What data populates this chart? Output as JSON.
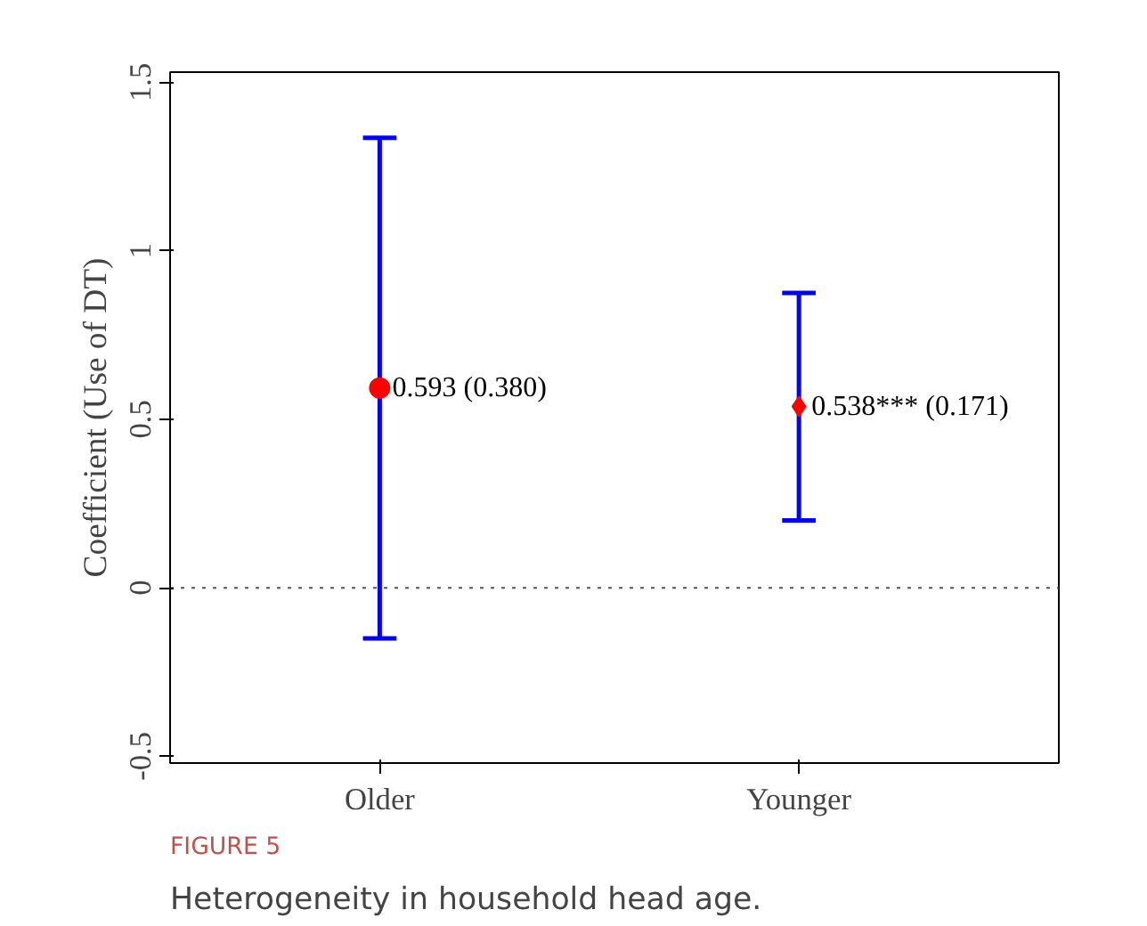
{
  "chart_data": {
    "type": "scatter",
    "title": "FIGURE 5",
    "subtitle": "Heterogeneity in household head age.",
    "ylabel": "Coefficient (Use of DT)",
    "categories": [
      "Older",
      "Younger"
    ],
    "series": [
      {
        "color": "#ff0000",
        "marker": "circle",
        "values": [
          0.593,
          null
        ],
        "errors": [
          [
            -0.15,
            1.335
          ],
          null
        ],
        "value_labels": [
          "0.593 (0.380)",
          null
        ]
      },
      {
        "color": "#ff0000",
        "marker": "diamond",
        "values": [
          null,
          0.538
        ],
        "errors": [
          null,
          [
            0.2,
            0.875
          ]
        ],
        "value_labels": [
          null,
          "0.538*** (0.171)"
        ]
      }
    ],
    "ylim": [
      -0.52,
      1.53
    ],
    "yticks": [
      -0.5,
      0,
      0.5,
      1,
      1.5
    ],
    "grid": false,
    "ref_lines": [
      {
        "axis": "y",
        "value": 0,
        "color": "#555555",
        "line_style": "dotted"
      }
    ]
  }
}
